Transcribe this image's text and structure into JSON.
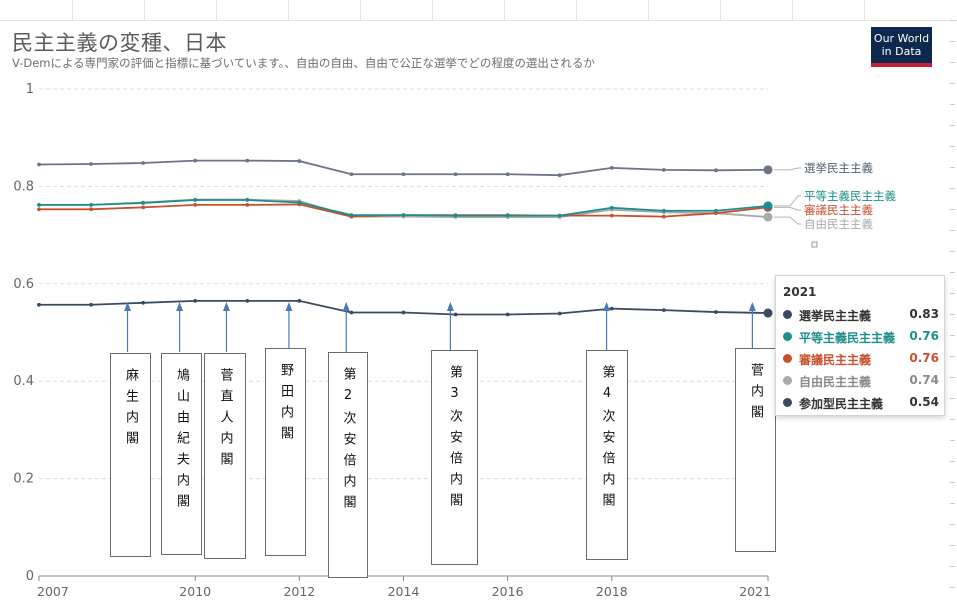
{
  "header": {
    "title": "民主主義の変種、日本",
    "subtitle": "V-Demによる専門家の評価と指標に基づいています。、自由の自由、自由で公正な選挙でどの程度の選出されるか",
    "logo_line1": "Our World",
    "logo_line2": "in Data"
  },
  "chart_data": {
    "type": "line",
    "x": [
      2007,
      2008,
      2009,
      2010,
      2011,
      2012,
      2013,
      2014,
      2015,
      2016,
      2017,
      2018,
      2019,
      2020,
      2021
    ],
    "x_tick_labels": [
      "2007",
      "2010",
      "2012",
      "2014",
      "2016",
      "2018",
      "2021"
    ],
    "x_ticks": [
      2007,
      2010,
      2012,
      2014,
      2016,
      2018,
      2021
    ],
    "y_tick_labels": [
      "0",
      "0.2",
      "0.4",
      "0.6",
      "0.8",
      "1"
    ],
    "y_ticks": [
      0,
      0.2,
      0.4,
      0.6,
      0.8,
      1
    ],
    "ylim": [
      0,
      1
    ],
    "xlim": [
      2007,
      2021
    ],
    "grid": "horizontal dashed",
    "series": [
      {
        "name": "選挙民主主義",
        "color": "#6c7585",
        "values": [
          0.845,
          0.846,
          0.848,
          0.853,
          0.853,
          0.852,
          0.825,
          0.825,
          0.825,
          0.825,
          0.823,
          0.838,
          0.834,
          0.833,
          0.834
        ]
      },
      {
        "name": "平等主義民主主義",
        "color": "#1d8f8a",
        "values": [
          0.762,
          0.762,
          0.766,
          0.772,
          0.772,
          0.767,
          0.741,
          0.741,
          0.74,
          0.74,
          0.74,
          0.756,
          0.75,
          0.75,
          0.76
        ]
      },
      {
        "name": "審議民主主義",
        "color": "#c9502e",
        "values": [
          0.753,
          0.753,
          0.757,
          0.762,
          0.762,
          0.763,
          0.738,
          0.741,
          0.741,
          0.741,
          0.74,
          0.74,
          0.738,
          0.745,
          0.757
        ]
      },
      {
        "name": "自由民主主義",
        "color": "#aaaaaa",
        "values": [
          0.762,
          0.762,
          0.767,
          0.773,
          0.773,
          0.77,
          0.738,
          0.738,
          0.737,
          0.737,
          0.737,
          0.752,
          0.747,
          0.745,
          0.737
        ]
      },
      {
        "name": "参加型民主主義",
        "color": "#3b4a63",
        "values": [
          0.557,
          0.557,
          0.561,
          0.565,
          0.565,
          0.565,
          0.541,
          0.541,
          0.537,
          0.537,
          0.539,
          0.549,
          0.546,
          0.542,
          0.54
        ]
      }
    ],
    "end_labels": [
      "選挙民主主義",
      "平等主義民主主義",
      "審議民主主義",
      "自由民主主義"
    ],
    "tooltip": {
      "year": "2021",
      "rows": [
        {
          "name": "選挙民主主義",
          "value": "0.83",
          "color": "#3b4a63",
          "text_color": "#333333"
        },
        {
          "name": "平等主義民主主義",
          "value": "0.76",
          "color": "#1d8f8a",
          "text_color": "#1d8f8a"
        },
        {
          "name": "審議民主主義",
          "value": "0.76",
          "color": "#c9502e",
          "text_color": "#c9502e"
        },
        {
          "name": "自由民主主義",
          "value": "0.74",
          "color": "#aaaaaa",
          "text_color": "#8a8a8a"
        },
        {
          "name": "参加型民主主義",
          "value": "0.54",
          "color": "#3b4a63",
          "text_color": "#333333"
        }
      ]
    },
    "annotations": [
      {
        "text": "麻生内閣",
        "year": 2008.7
      },
      {
        "text": "鳩山由紀夫内閣",
        "year": 2009.7
      },
      {
        "text": "菅直人内閣",
        "year": 2010.6
      },
      {
        "text": "野田内閣",
        "year": 2011.8
      },
      {
        "text": "第2次安倍内閣",
        "year": 2012.9
      },
      {
        "text": "第3次安倍内閣",
        "year": 2014.9
      },
      {
        "text": "第4次安倍内閣",
        "year": 2017.9
      },
      {
        "text": "菅内閣",
        "year": 2020.7
      }
    ]
  }
}
